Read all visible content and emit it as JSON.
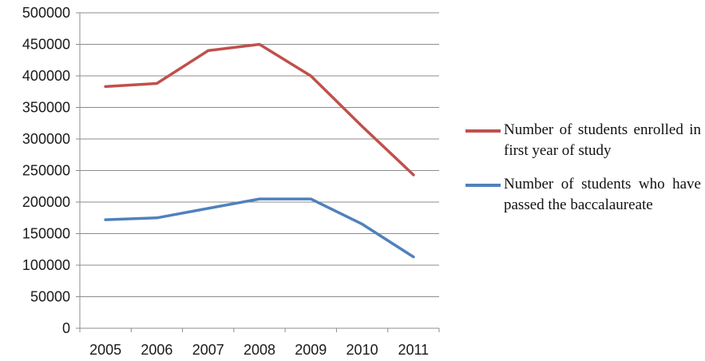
{
  "chart_data": {
    "type": "line",
    "title": "",
    "xlabel": "",
    "ylabel": "",
    "categories": [
      "2005",
      "2006",
      "2007",
      "2008",
      "2009",
      "2010",
      "2011"
    ],
    "ylim": [
      0,
      500000
    ],
    "yticks": [
      0,
      50000,
      100000,
      150000,
      200000,
      250000,
      300000,
      350000,
      400000,
      450000,
      500000
    ],
    "ytick_labels": [
      "0",
      "50000",
      "100000",
      "150000",
      "200000",
      "250000",
      "300000",
      "350000",
      "400000",
      "450000",
      "500000"
    ],
    "grid": "horizontal",
    "legend_position": "right",
    "series": [
      {
        "name": "Number of students enrolled in first year of study",
        "color": "#c0504d",
        "values": [
          383000,
          388000,
          440000,
          450000,
          400000,
          320000,
          243000
        ]
      },
      {
        "name": "Number of students who have passed the baccalaureate",
        "color": "#4f81bd",
        "values": [
          172000,
          175000,
          190000,
          205000,
          205000,
          165000,
          113000
        ]
      }
    ]
  }
}
